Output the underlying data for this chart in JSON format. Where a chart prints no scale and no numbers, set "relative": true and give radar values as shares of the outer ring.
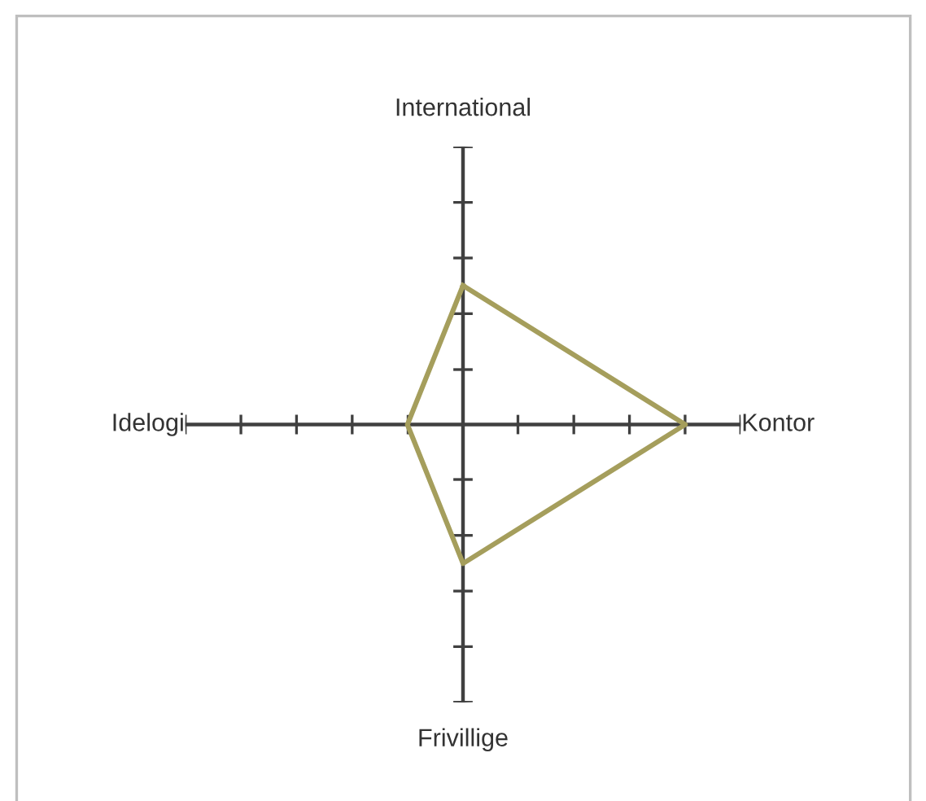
{
  "chart_data": {
    "type": "radar",
    "relative": true,
    "categories": [
      "International",
      "Kontor",
      "Frivillige",
      "Idelogi"
    ],
    "series": [
      {
        "color": "#a59e5c",
        "values": [
          0.5,
          0.8,
          0.5,
          0.2
        ]
      }
    ]
  }
}
